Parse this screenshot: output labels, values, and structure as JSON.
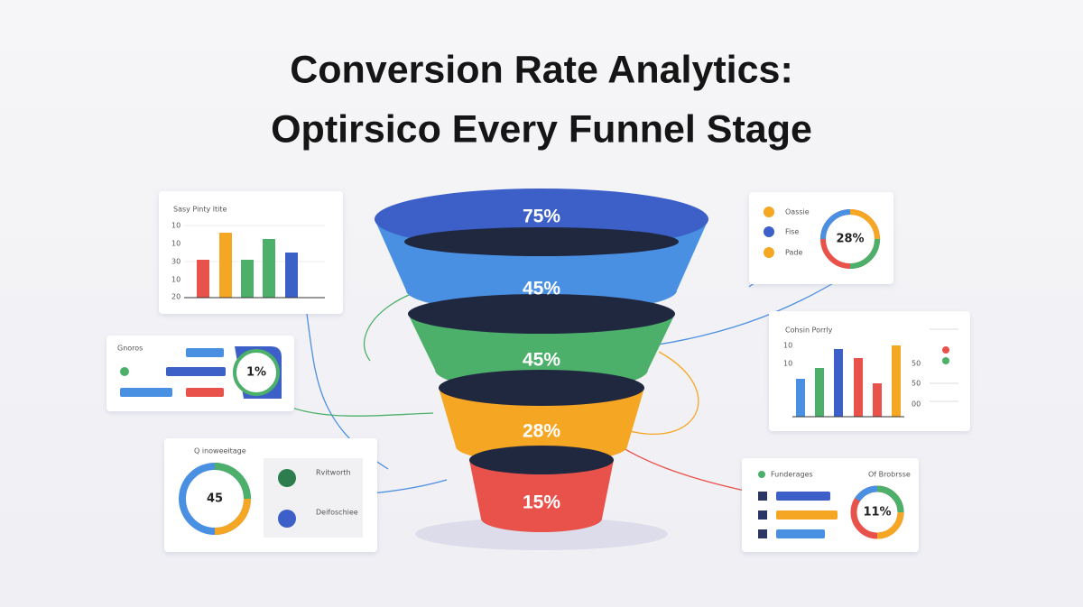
{
  "header": {
    "title_line1": "Conversion Rate Analytics:",
    "title_line2": "Optirsico Every Funnel Stage"
  },
  "funnel": {
    "stages": [
      "75%",
      "45%",
      "45%",
      "28%",
      "15%"
    ]
  },
  "cards": {
    "bar_card_left": {
      "title": "Sasy Pinty ltite",
      "axis_labels": [
        "10",
        "10",
        "30",
        "10",
        "20"
      ]
    },
    "toggle_card": {
      "title": "Gnoros",
      "donut_label": "1%"
    },
    "donut_card_bottom": {
      "title": "Q inoweeitage",
      "donut_label": "45",
      "items": [
        "Rvitworth",
        "Deifoschiee"
      ]
    },
    "legend_card": {
      "items": [
        "Oassie",
        "Fise",
        "Pade"
      ],
      "donut_label": "28%"
    },
    "bar_card_right": {
      "title": "Cohsin Porrly",
      "axis_labels": [
        "10",
        "10",
        "50",
        "50",
        "00"
      ]
    },
    "progress_card": {
      "title": "Funderages",
      "subtitle": "Of Brobrsse",
      "donut_label": "11%"
    }
  }
}
